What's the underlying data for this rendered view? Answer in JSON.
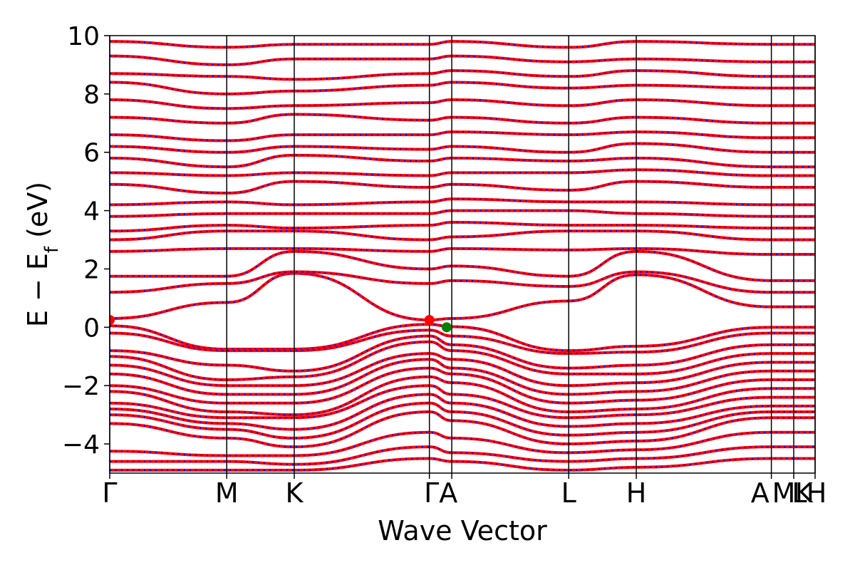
{
  "chart_data": {
    "type": "line",
    "title": "",
    "xlabel": "Wave Vector",
    "ylabel_parts": {
      "main": "E − E",
      "sub": "f",
      "unit": " (eV)"
    },
    "ylim": [
      -5,
      10
    ],
    "xlim": [
      0,
      1
    ],
    "yticks": [
      -4,
      -2,
      0,
      2,
      4,
      6,
      8,
      10
    ],
    "ytick_labels": [
      "−4",
      "−2",
      "0",
      "2",
      "4",
      "6",
      "8",
      "10"
    ],
    "grid": false,
    "kpoints": [
      {
        "label": "Γ",
        "x": 0.0
      },
      {
        "label": "M",
        "x": 0.1659
      },
      {
        "label": "K",
        "x": 0.2616
      },
      {
        "label": "Γ",
        "x": 0.4532
      },
      {
        "label": "A",
        "x": 0.4849
      },
      {
        "label": "L",
        "x": 0.6507
      },
      {
        "label": "H",
        "x": 0.7465
      },
      {
        "label": "A",
        "x": 0.938
      },
      {
        "label": "M",
        "x": 0.9697
      },
      {
        "label": "L",
        "x": 0.9697
      },
      {
        "label": "K",
        "x": 1.0
      },
      {
        "label": "H",
        "x": 1.0
      }
    ],
    "kpoint_label_text": [
      "Γ",
      "M",
      "K",
      "ΓA",
      "L",
      "H",
      "A",
      "M",
      "L",
      "K",
      "H"
    ],
    "series": [
      {
        "color": "#ff0000",
        "style": "solid"
      },
      {
        "color": "#0000ff",
        "style": "dotted"
      }
    ],
    "valence_bands": [
      [
        0.05,
        -0.75,
        -0.75,
        0.1,
        0.02,
        -0.8,
        -0.65,
        0.0
      ],
      [
        -0.2,
        -0.8,
        -0.8,
        -0.1,
        -0.3,
        -0.9,
        -0.85,
        -0.2
      ],
      [
        -0.8,
        -1.3,
        -1.5,
        -0.3,
        -0.6,
        -1.4,
        -1.3,
        -0.6
      ],
      [
        -1.0,
        -1.8,
        -1.7,
        -0.5,
        -0.8,
        -1.6,
        -1.6,
        -0.9
      ],
      [
        -1.3,
        -2.0,
        -2.0,
        -0.9,
        -1.1,
        -2.0,
        -1.9,
        -1.2
      ],
      [
        -1.6,
        -2.3,
        -2.3,
        -1.1,
        -1.4,
        -2.3,
        -2.2,
        -1.5
      ],
      [
        -2.0,
        -2.6,
        -2.6,
        -1.4,
        -1.6,
        -2.6,
        -2.5,
        -1.8
      ],
      [
        -2.2,
        -2.9,
        -3.0,
        -1.7,
        -1.9,
        -2.9,
        -2.8,
        -2.1
      ],
      [
        -2.6,
        -3.1,
        -3.1,
        -2.0,
        -2.3,
        -3.1,
        -3.0,
        -2.4
      ],
      [
        -2.8,
        -3.3,
        -3.5,
        -2.3,
        -2.6,
        -3.4,
        -3.3,
        -2.7
      ],
      [
        -3.0,
        -3.5,
        -3.8,
        -2.6,
        -2.9,
        -3.7,
        -3.6,
        -2.9
      ],
      [
        -3.3,
        -3.8,
        -4.1,
        -2.9,
        -3.2,
        -4.0,
        -3.9,
        -3.1
      ],
      [
        -4.25,
        -4.4,
        -4.4,
        -3.6,
        -3.8,
        -4.3,
        -4.2,
        -3.6
      ],
      [
        -4.6,
        -4.6,
        -4.7,
        -4.1,
        -4.3,
        -4.6,
        -4.5,
        -4.1
      ],
      [
        -4.9,
        -4.9,
        -4.9,
        -4.5,
        -4.6,
        -4.9,
        -4.8,
        -4.5
      ]
    ],
    "conduction_bands": [
      [
        0.3,
        0.85,
        1.85,
        0.25,
        0.3,
        0.9,
        1.8,
        0.7
      ],
      [
        1.2,
        1.5,
        1.9,
        1.5,
        1.6,
        1.4,
        1.9,
        1.2
      ],
      [
        1.75,
        1.75,
        2.6,
        2.0,
        2.1,
        1.75,
        2.6,
        1.6
      ],
      [
        2.6,
        2.7,
        2.7,
        2.6,
        2.7,
        2.65,
        2.7,
        2.5
      ],
      [
        3.0,
        3.3,
        3.3,
        3.0,
        3.1,
        3.3,
        3.3,
        3.0
      ],
      [
        3.3,
        3.5,
        3.4,
        3.5,
        3.6,
        3.5,
        3.5,
        3.4
      ],
      [
        3.8,
        3.9,
        3.9,
        3.9,
        4.0,
        4.0,
        3.9,
        3.8
      ],
      [
        4.2,
        4.3,
        4.2,
        4.3,
        4.4,
        4.3,
        4.3,
        4.2
      ],
      [
        4.9,
        4.6,
        5.0,
        4.8,
        4.9,
        4.7,
        5.0,
        4.8
      ],
      [
        5.3,
        5.2,
        5.3,
        5.2,
        5.3,
        5.3,
        5.4,
        5.2
      ],
      [
        5.8,
        5.5,
        5.9,
        5.7,
        5.8,
        5.7,
        5.8,
        5.5
      ],
      [
        6.2,
        6.0,
        6.2,
        6.1,
        6.2,
        6.0,
        6.3,
        6.0
      ],
      [
        6.6,
        6.4,
        6.6,
        6.6,
        6.7,
        6.6,
        6.7,
        6.5
      ],
      [
        7.2,
        7.0,
        7.3,
        7.1,
        7.2,
        7.0,
        7.2,
        7.0
      ],
      [
        7.8,
        7.5,
        7.6,
        7.7,
        7.8,
        7.6,
        7.8,
        7.6
      ],
      [
        8.4,
        8.0,
        8.1,
        8.3,
        8.4,
        8.2,
        8.3,
        8.2
      ],
      [
        8.7,
        8.6,
        8.5,
        8.7,
        8.8,
        8.6,
        8.8,
        8.6
      ],
      [
        9.3,
        9.0,
        9.2,
        9.2,
        9.3,
        9.1,
        9.2,
        9.1
      ],
      [
        9.8,
        9.6,
        9.7,
        9.7,
        9.8,
        9.6,
        9.8,
        9.7
      ]
    ],
    "markers": [
      {
        "x": 0.0,
        "y": 0.25,
        "color": "#ff0000"
      },
      {
        "x": 0.4532,
        "y": 0.25,
        "color": "#ff0000"
      },
      {
        "x": 0.4777,
        "y": 0.0,
        "color": "#008000"
      }
    ]
  }
}
